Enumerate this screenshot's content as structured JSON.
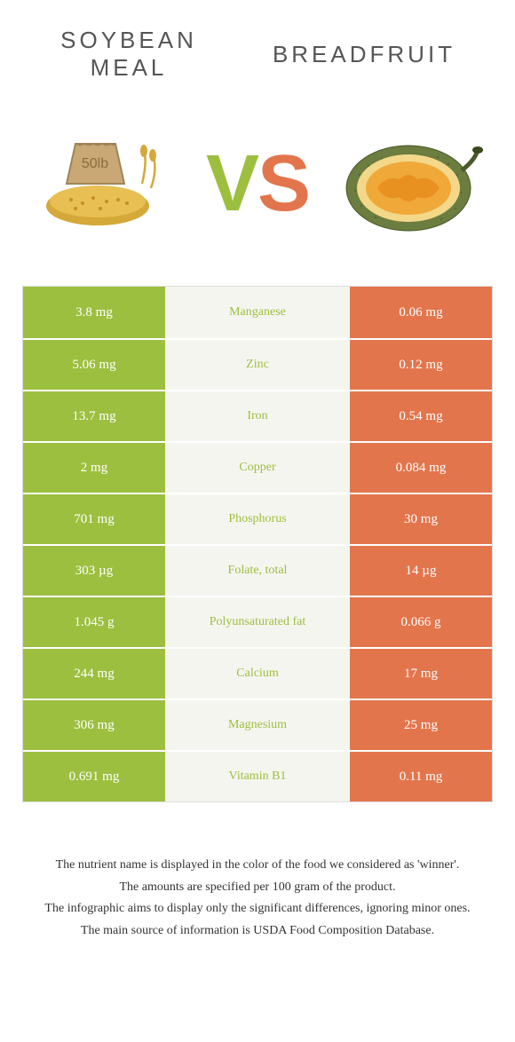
{
  "titles": {
    "left_line1": "SOYBEAN",
    "left_line2": "MEAL",
    "right": "BREADFRUIT"
  },
  "vs": {
    "v": "V",
    "s": "S"
  },
  "colors": {
    "left": "#9cbf3f",
    "right": "#e3754c",
    "mid_bg": "#f5f5f0",
    "mid_text_left": "#9cbf3f",
    "mid_text_right": "#e3754c"
  },
  "rows": [
    {
      "left": "3.8 mg",
      "label": "Manganese",
      "right": "0.06 mg",
      "winner": "left"
    },
    {
      "left": "5.06 mg",
      "label": "Zinc",
      "right": "0.12 mg",
      "winner": "left"
    },
    {
      "left": "13.7 mg",
      "label": "Iron",
      "right": "0.54 mg",
      "winner": "left"
    },
    {
      "left": "2 mg",
      "label": "Copper",
      "right": "0.084 mg",
      "winner": "left"
    },
    {
      "left": "701 mg",
      "label": "Phosphorus",
      "right": "30 mg",
      "winner": "left"
    },
    {
      "left": "303 µg",
      "label": "Folate, total",
      "right": "14 µg",
      "winner": "left"
    },
    {
      "left": "1.045 g",
      "label": "Polyunsaturated fat",
      "right": "0.066 g",
      "winner": "left"
    },
    {
      "left": "244 mg",
      "label": "Calcium",
      "right": "17 mg",
      "winner": "left"
    },
    {
      "left": "306 mg",
      "label": "Magnesium",
      "right": "25 mg",
      "winner": "left"
    },
    {
      "left": "0.691 mg",
      "label": "Vitamin B1",
      "right": "0.11 mg",
      "winner": "left"
    }
  ],
  "footer": {
    "l1": "The nutrient name is displayed in the color of the food we considered as 'winner'.",
    "l2": "The amounts are specified per 100 gram of the product.",
    "l3": "The infographic aims to display only the significant differences, ignoring minor ones.",
    "l4": "The main source of information is USDA Food Composition Database."
  }
}
